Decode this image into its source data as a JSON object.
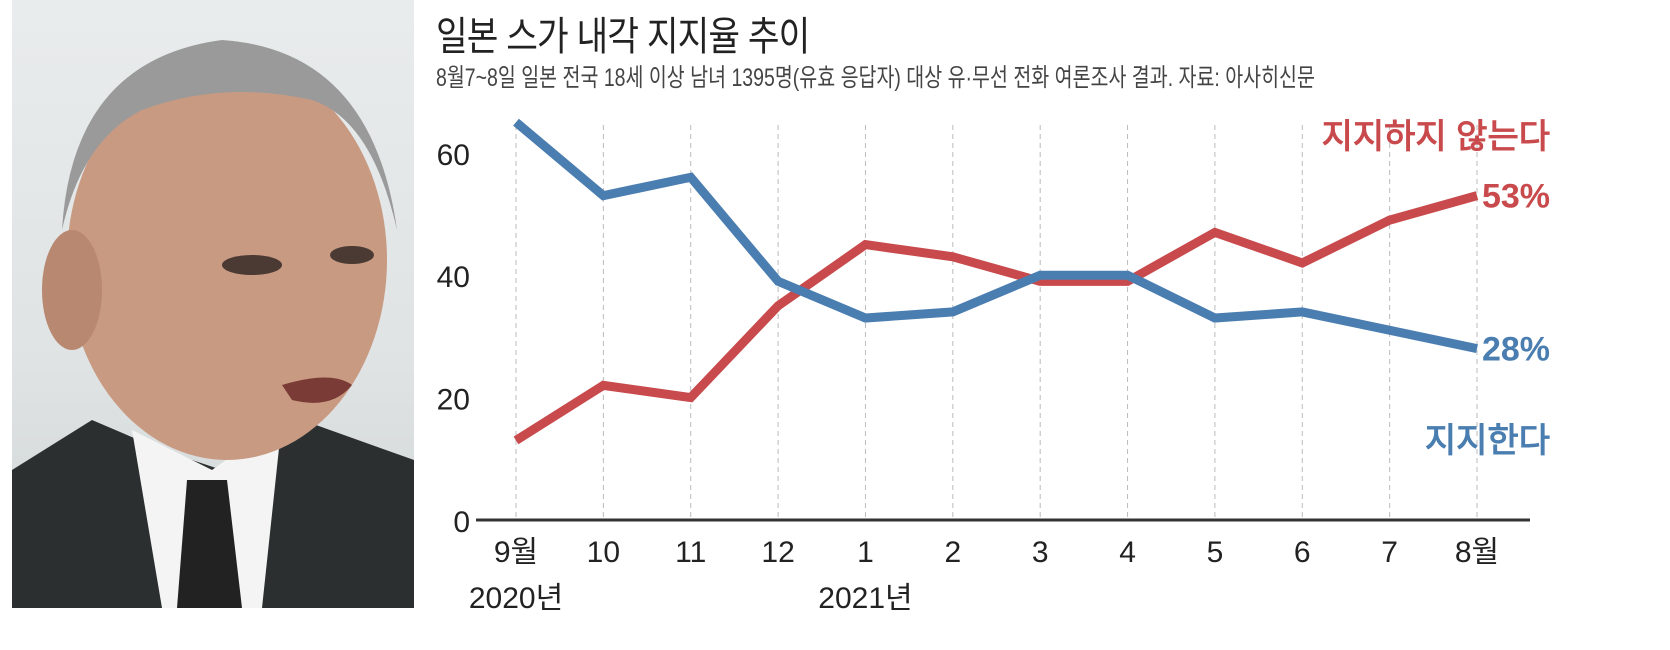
{
  "title": "일본 스가 내각 지지율 추이",
  "subtitle": "8월7~8일 일본 전국 18세 이상 남녀 1395명(유효 응답자) 대상 유·무선 전화 여론조사 결과. 자료: 아사히신문",
  "chart_data": {
    "type": "line",
    "title": "일본 스가 내각 지지율 추이",
    "categories": [
      "9월",
      "10",
      "11",
      "12",
      "1",
      "2",
      "3",
      "4",
      "5",
      "6",
      "7",
      "8월"
    ],
    "year_labels": [
      {
        "index": 0,
        "text": "2020년"
      },
      {
        "index": 4,
        "text": "2021년"
      }
    ],
    "y_ticks": [
      0,
      20,
      40,
      60
    ],
    "ylim": [
      0,
      70
    ],
    "grid": "vertical dashed",
    "series": [
      {
        "name": "지지하지 않는다",
        "color": "#c94a4c",
        "values": [
          13,
          22,
          20,
          35,
          45,
          43,
          39,
          39,
          47,
          42,
          49,
          53
        ],
        "end_label": "53%"
      },
      {
        "name": "지지한다",
        "color": "#4a7db0",
        "values": [
          65,
          53,
          56,
          39,
          33,
          34,
          40,
          40,
          33,
          34,
          31,
          28
        ],
        "end_label": "28%"
      }
    ]
  }
}
